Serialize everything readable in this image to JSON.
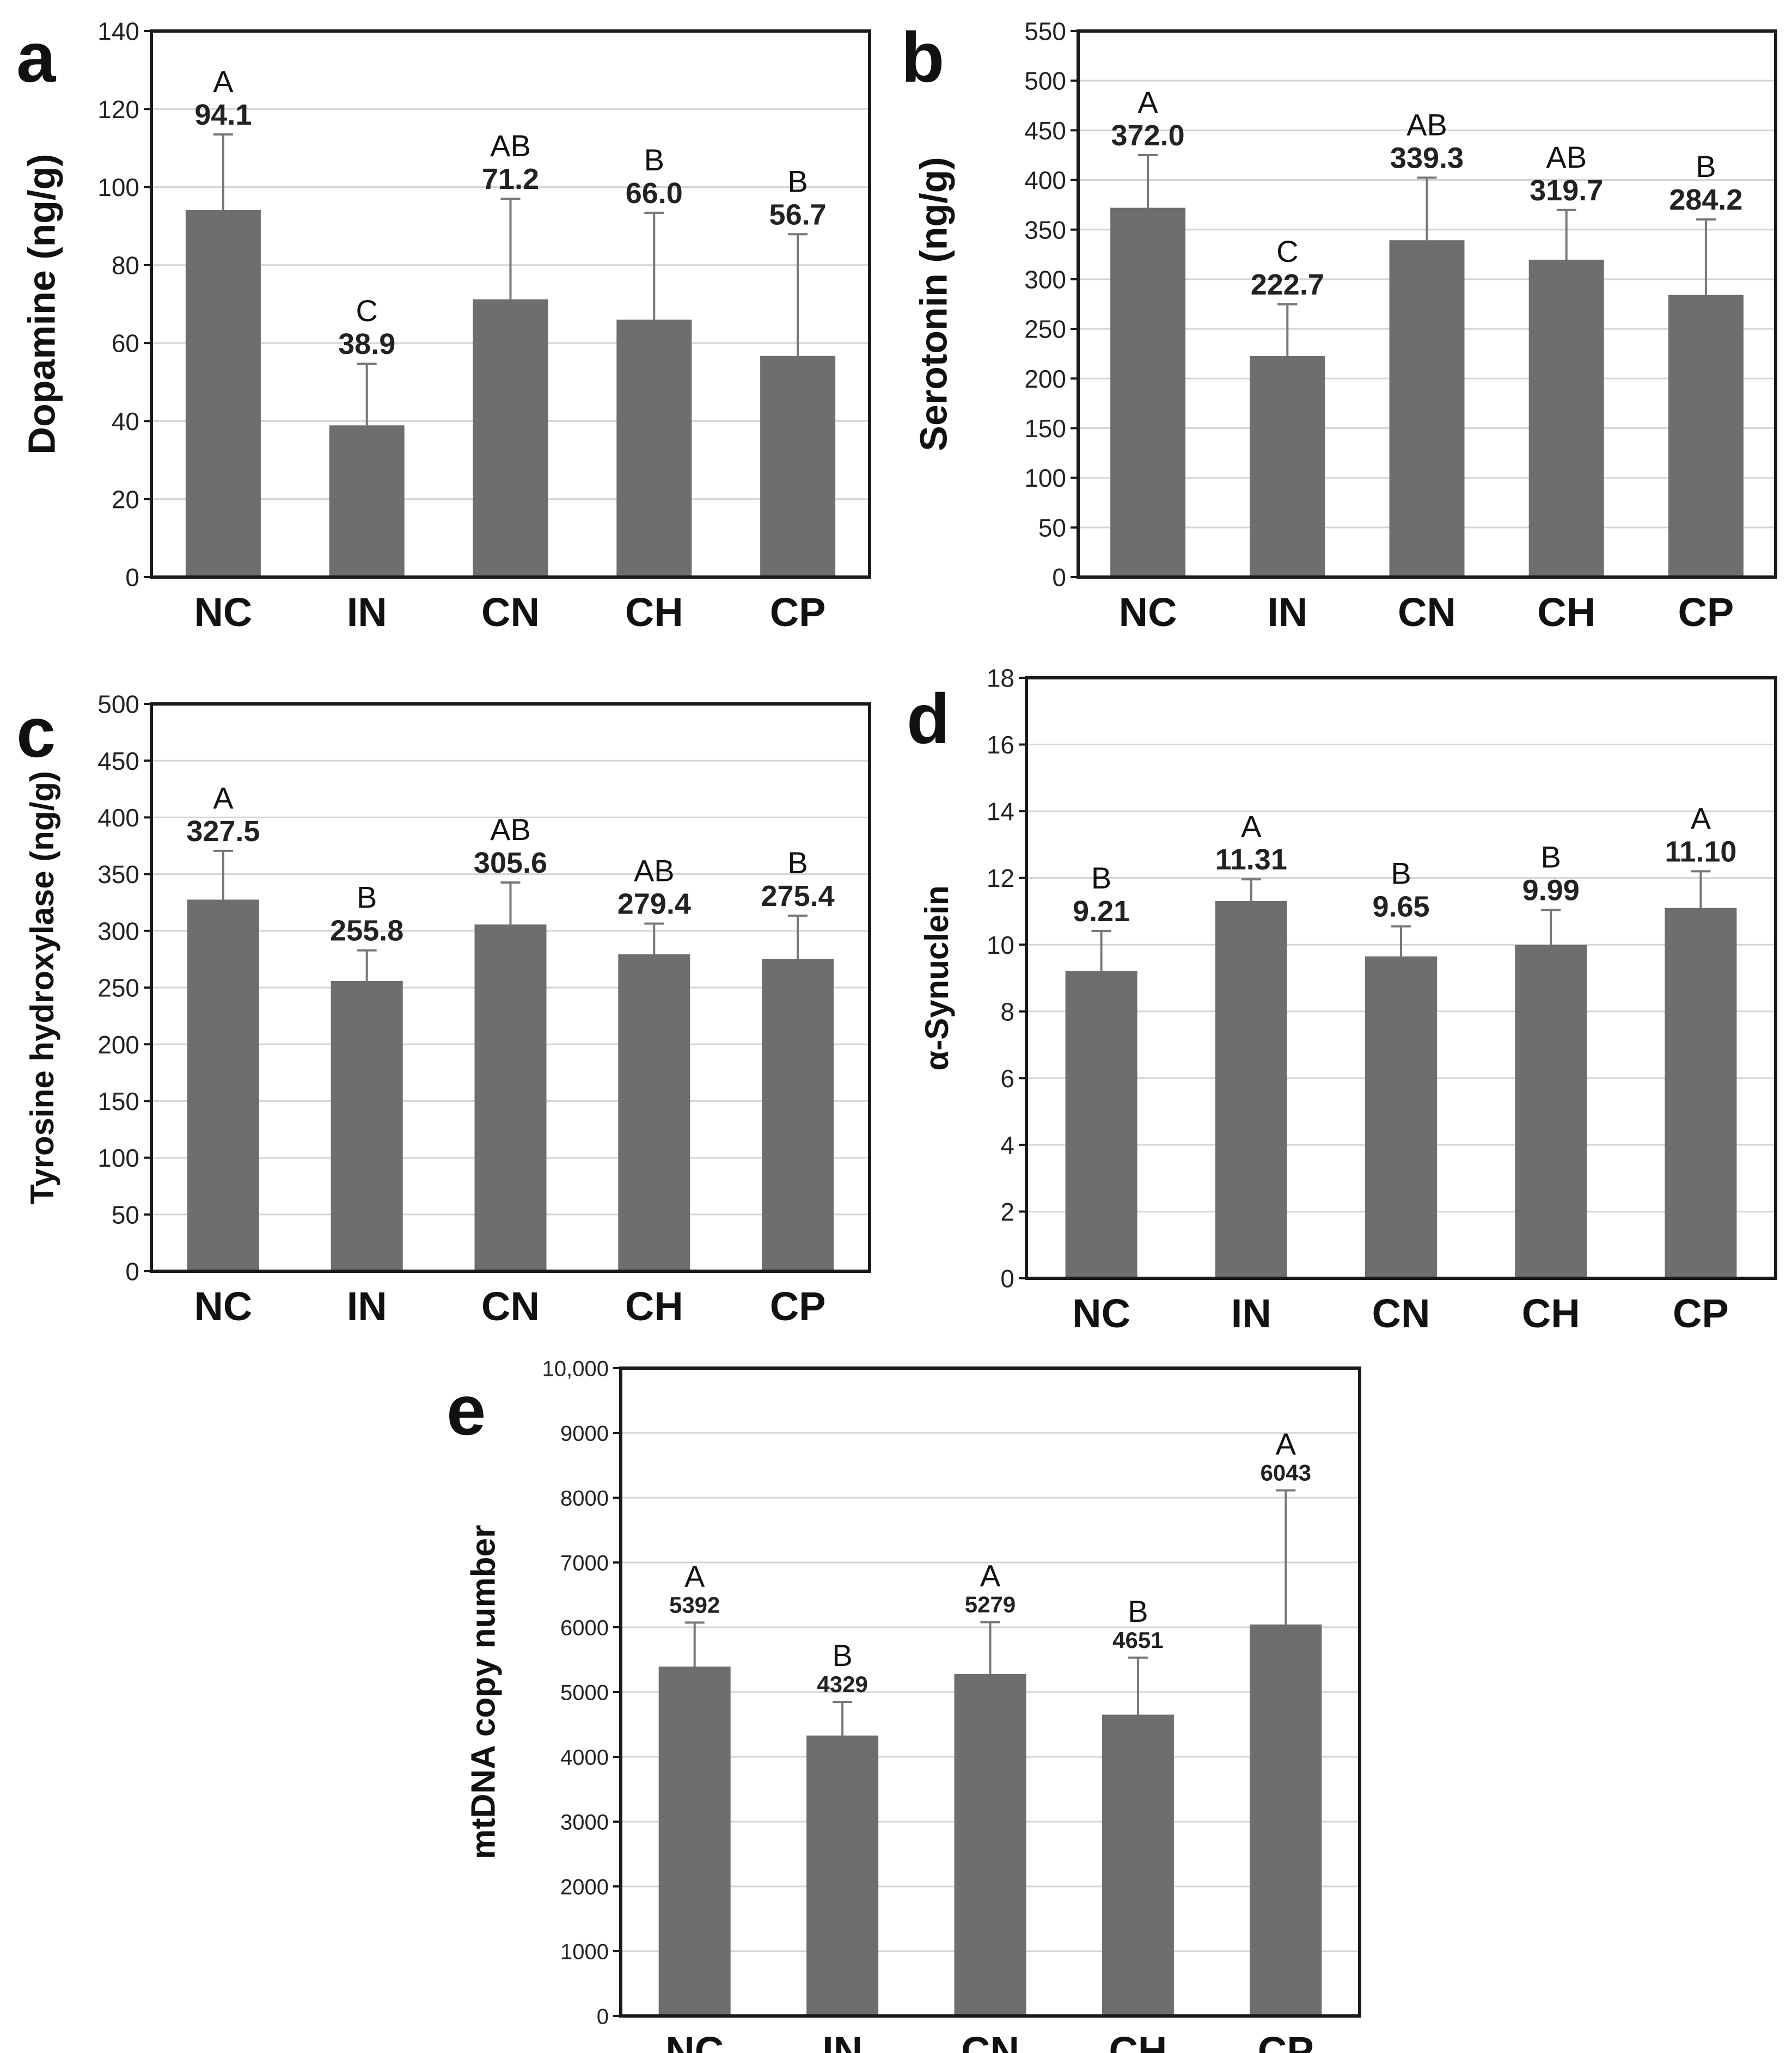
{
  "figure": {
    "bar_color": "#6e6e6e",
    "grid_color": "#d4d4d4",
    "frame_color": "#1a1a1a"
  },
  "chart_data": [
    {
      "panel": "a",
      "type": "bar",
      "categories": [
        "NC",
        "IN",
        "CN",
        "CH",
        "CP"
      ],
      "values": [
        94.1,
        38.9,
        71.2,
        66.0,
        56.7
      ],
      "value_labels": [
        "94.1",
        "38.9",
        "71.2",
        "66.0",
        "56.7"
      ],
      "errors": [
        19.4,
        15.8,
        25.8,
        27.4,
        31.2
      ],
      "letters": [
        "A",
        "C",
        "AB",
        "B",
        "B"
      ],
      "ylabel": "Dopamine (ng/g)",
      "ylim": [
        0,
        140
      ],
      "yticks": [
        0,
        20,
        40,
        60,
        80,
        100,
        120,
        140
      ],
      "ytick_labels": [
        "0",
        "20",
        "40",
        "60",
        "80",
        "100",
        "120",
        "140"
      ],
      "grid": true
    },
    {
      "panel": "b",
      "type": "bar",
      "categories": [
        "NC",
        "IN",
        "CN",
        "CH",
        "CP"
      ],
      "values": [
        372.0,
        222.7,
        339.3,
        319.7,
        284.2
      ],
      "value_labels": [
        "372.0",
        "222.7",
        "339.3",
        "319.7",
        "284.2"
      ],
      "errors": [
        53,
        52,
        63,
        50,
        76
      ],
      "letters": [
        "A",
        "C",
        "AB",
        "AB",
        "B"
      ],
      "ylabel": "Serotonin (ng/g)",
      "ylim": [
        0,
        550
      ],
      "yticks": [
        0,
        50,
        100,
        150,
        200,
        250,
        300,
        350,
        400,
        450,
        500,
        550
      ],
      "ytick_labels": [
        "0",
        "50",
        "100",
        "150",
        "200",
        "250",
        "300",
        "350",
        "400",
        "450",
        "500",
        "550"
      ],
      "grid": true
    },
    {
      "panel": "c",
      "type": "bar",
      "categories": [
        "NC",
        "IN",
        "CN",
        "CH",
        "CP"
      ],
      "values": [
        327.5,
        255.8,
        305.6,
        279.4,
        275.4
      ],
      "value_labels": [
        "327.5",
        "255.8",
        "305.6",
        "279.4",
        "275.4"
      ],
      "errors": [
        43,
        27,
        37,
        27,
        38
      ],
      "letters": [
        "A",
        "B",
        "AB",
        "AB",
        "B"
      ],
      "ylabel": "Tyrosine hydroxylase (ng/g)",
      "ylim": [
        0,
        500
      ],
      "yticks": [
        0,
        50,
        100,
        150,
        200,
        250,
        300,
        350,
        400,
        450,
        500
      ],
      "ytick_labels": [
        "0",
        "50",
        "100",
        "150",
        "200",
        "250",
        "300",
        "350",
        "400",
        "450",
        "500"
      ],
      "grid": true
    },
    {
      "panel": "d",
      "type": "bar",
      "categories": [
        "NC",
        "IN",
        "CN",
        "CH",
        "CP"
      ],
      "values": [
        9.21,
        11.31,
        9.65,
        9.99,
        11.1
      ],
      "value_labels": [
        "9.21",
        "11.31",
        "9.65",
        "9.99",
        "11.10"
      ],
      "errors": [
        1.2,
        0.65,
        0.9,
        1.05,
        1.1
      ],
      "letters": [
        "B",
        "A",
        "B",
        "B",
        "A"
      ],
      "ylabel": "α-Synuclein",
      "ylim": [
        0,
        18
      ],
      "yticks": [
        0,
        2,
        4,
        6,
        8,
        10,
        12,
        14,
        16,
        18
      ],
      "ytick_labels": [
        "0",
        "2",
        "4",
        "6",
        "8",
        "10",
        "12",
        "14",
        "16",
        "18"
      ],
      "grid": true
    },
    {
      "panel": "e",
      "type": "bar",
      "categories": [
        "NC",
        "IN",
        "CN",
        "CH",
        "CP"
      ],
      "values": [
        5392,
        4329,
        5279,
        4651,
        6043
      ],
      "value_labels": [
        "5392",
        "4329",
        "5279",
        "4651",
        "6043"
      ],
      "errors": [
        680,
        520,
        800,
        880,
        2070
      ],
      "letters": [
        "A",
        "B",
        "A",
        "B",
        "A"
      ],
      "ylabel": "mtDNA copy number",
      "ylim": [
        0,
        10000
      ],
      "yticks": [
        0,
        1000,
        2000,
        3000,
        4000,
        5000,
        6000,
        7000,
        8000,
        9000,
        10000
      ],
      "ytick_labels": [
        "0",
        "1000",
        "2000",
        "3000",
        "4000",
        "5000",
        "6000",
        "7000",
        "8000",
        "9000",
        "10,000"
      ],
      "grid": true
    }
  ]
}
